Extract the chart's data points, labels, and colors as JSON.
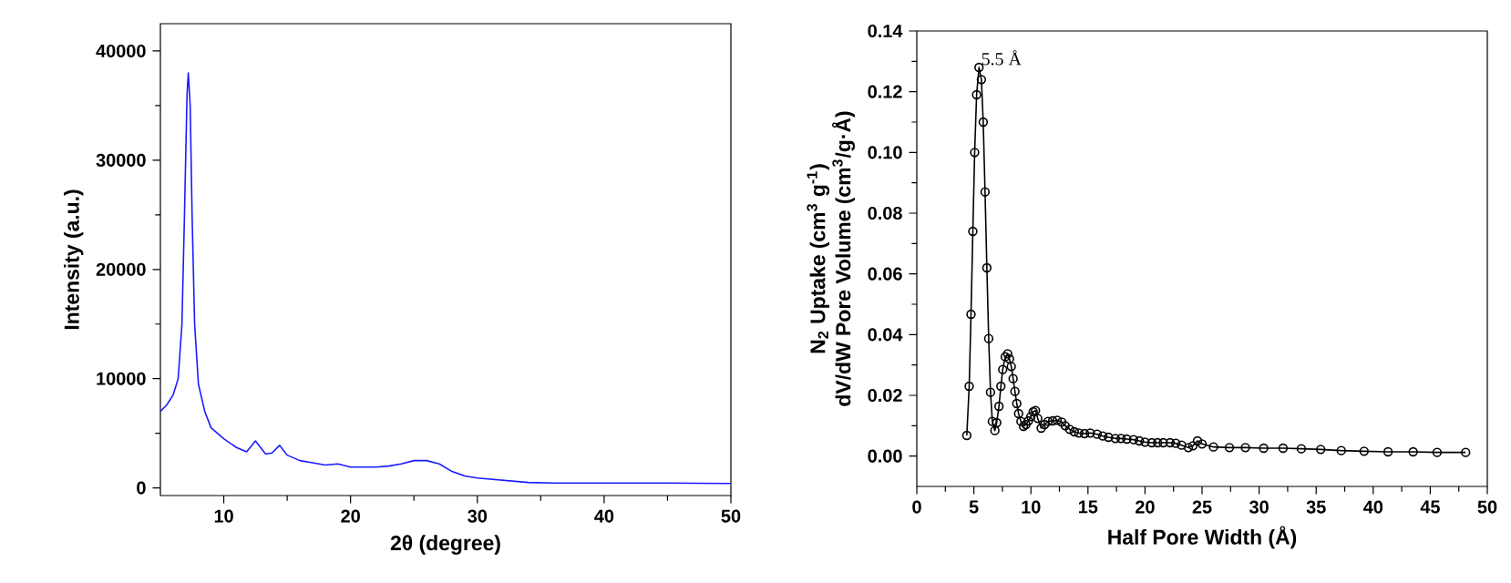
{
  "chart_data": [
    {
      "type": "line",
      "xlabel": "2θ (degree)",
      "ylabel": "Intensity (a.u.)",
      "xlim": [
        5,
        50
      ],
      "ylim": [
        -700,
        42500
      ],
      "xticks": [
        10,
        20,
        30,
        40,
        50
      ],
      "yticks": [
        0,
        10000,
        20000,
        30000,
        40000
      ],
      "marker": "none",
      "line_style": "solid",
      "series": [
        {
          "color": "#1a1aff",
          "x": [
            5,
            5.5,
            6,
            6.4,
            6.7,
            6.9,
            7.1,
            7.2,
            7.35,
            7.5,
            7.7,
            8,
            8.5,
            9,
            10,
            11,
            11.8,
            12.5,
            13.3,
            13.8,
            14.4,
            15,
            16,
            17,
            18,
            19,
            20,
            21,
            22,
            23,
            24,
            25,
            26,
            27,
            28,
            29,
            30,
            32,
            34,
            36,
            40,
            45,
            50
          ],
          "values": [
            7000,
            7600,
            8500,
            10000,
            15000,
            25000,
            36000,
            38000,
            35000,
            25000,
            15000,
            9500,
            7000,
            5500,
            4500,
            3700,
            3300,
            4300,
            3100,
            3200,
            3900,
            3000,
            2500,
            2300,
            2100,
            2200,
            1900,
            1900,
            1900,
            2000,
            2200,
            2500,
            2500,
            2200,
            1500,
            1100,
            900,
            700,
            500,
            450,
            450,
            450,
            400
          ]
        }
      ]
    },
    {
      "type": "line",
      "xlabel": "Half Pore Width (Å)",
      "ylabel": [
        "N$_{2}$ Uptake (cm$^{3}$ g$^{-1}$)",
        "dV/dW Pore Volume (cm$^{3}$/g·Å)"
      ],
      "xlim": [
        0,
        50
      ],
      "ylim": [
        -0.01,
        0.14
      ],
      "xticks": [
        0,
        5,
        10,
        15,
        20,
        25,
        30,
        35,
        40,
        45,
        50
      ],
      "yticks": [
        {
          "value": 0,
          "label": "0.00"
        },
        {
          "value": 0.02,
          "label": "0.02"
        },
        {
          "value": 0.04,
          "label": "0.04"
        },
        {
          "value": 0.06,
          "label": "0.06"
        },
        {
          "value": 0.08,
          "label": "0.08"
        },
        {
          "value": 0.1,
          "label": "0.10"
        },
        {
          "value": 0.12,
          "label": "0.12"
        },
        {
          "value": 0.14,
          "label": "0.14"
        }
      ],
      "marker": "circle",
      "line_style": "solid",
      "annotations": [
        {
          "text": "5.5 Å",
          "x": 5.45,
          "y": 0.128
        }
      ],
      "series": [
        {
          "color": "#000000",
          "x": [
            4.38,
            4.59,
            4.75,
            4.91,
            5.07,
            5.24,
            5.45,
            5.66,
            5.82,
            5.98,
            6.14,
            6.3,
            6.46,
            6.62,
            6.84,
            7.0,
            7.2,
            7.37,
            7.53,
            7.75,
            7.96,
            8.12,
            8.28,
            8.44,
            8.6,
            8.76,
            8.92,
            9.13,
            9.35,
            9.56,
            9.78,
            9.99,
            10.2,
            10.4,
            10.6,
            10.9,
            11.2,
            11.5,
            11.9,
            12.3,
            12.7,
            13.0,
            13.4,
            13.8,
            14.2,
            14.7,
            15.2,
            15.8,
            16.3,
            16.8,
            17.4,
            17.9,
            18.4,
            19.0,
            19.5,
            20.0,
            20.6,
            21.1,
            21.6,
            22.2,
            22.7,
            23.2,
            23.8,
            24.2,
            24.6,
            25.0,
            26.0,
            27.4,
            28.8,
            30.4,
            32.1,
            33.7,
            35.4,
            37.2,
            39.2,
            41.3,
            43.5,
            45.6,
            48.1
          ],
          "values": [
            0.0068,
            0.023,
            0.0467,
            0.074,
            0.1,
            0.119,
            0.128,
            0.124,
            0.11,
            0.087,
            0.062,
            0.0387,
            0.021,
            0.0114,
            0.0084,
            0.011,
            0.0164,
            0.023,
            0.0285,
            0.0327,
            0.0337,
            0.032,
            0.0295,
            0.0255,
            0.0213,
            0.0173,
            0.014,
            0.0114,
            0.0098,
            0.0104,
            0.0116,
            0.013,
            0.0146,
            0.015,
            0.0124,
            0.0092,
            0.0104,
            0.0114,
            0.0116,
            0.0118,
            0.0112,
            0.01,
            0.0088,
            0.008,
            0.0076,
            0.0074,
            0.0076,
            0.0072,
            0.0066,
            0.0062,
            0.0058,
            0.0058,
            0.0056,
            0.0054,
            0.005,
            0.0046,
            0.0044,
            0.0044,
            0.0044,
            0.0044,
            0.0042,
            0.0036,
            0.0028,
            0.0034,
            0.005,
            0.004,
            0.003,
            0.0028,
            0.0028,
            0.0026,
            0.0026,
            0.0024,
            0.0022,
            0.0018,
            0.0016,
            0.0014,
            0.0014,
            0.0012,
            0.0012
          ]
        }
      ]
    }
  ]
}
